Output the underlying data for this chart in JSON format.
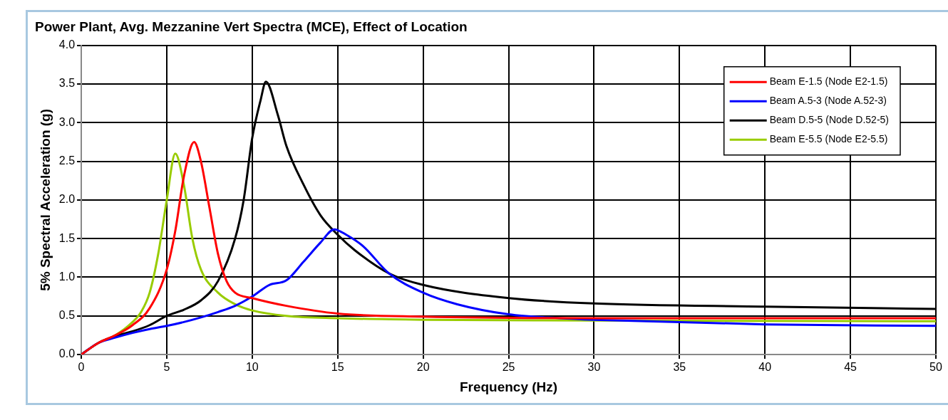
{
  "chart_data": {
    "type": "line",
    "title": "Power Plant, Avg. Mezzanine Vert Spectra (MCE), Effect of Location",
    "xlabel": "Frequency (Hz)",
    "ylabel": "5% Spectral Acceleration (g)",
    "xlim": [
      0,
      50
    ],
    "ylim": [
      0,
      4
    ],
    "xticks": [
      0,
      5,
      10,
      15,
      20,
      25,
      30,
      35,
      40,
      45,
      50
    ],
    "yticks": [
      {
        "value": 0,
        "label": "0.0"
      },
      {
        "value": 0.5,
        "label": "0.5"
      },
      {
        "value": 1,
        "label": "1.0"
      },
      {
        "value": 1.5,
        "label": "1.5"
      },
      {
        "value": 2,
        "label": "2.0"
      },
      {
        "value": 2.5,
        "label": "2.5"
      },
      {
        "value": 3,
        "label": "3.0"
      },
      {
        "value": 3.5,
        "label": "3.5"
      },
      {
        "value": 4,
        "label": "4.0"
      }
    ],
    "grid": true,
    "legend": "top right",
    "marker": "none",
    "line_style": "solid",
    "series": [
      {
        "name": "Beam E-1.5 (Node E2-1.5)",
        "color": "#ff0000",
        "x": [
          0,
          1,
          2,
          3,
          4,
          5,
          5.5,
          6,
          6.6,
          7,
          7.5,
          8,
          8.5,
          9,
          10,
          12,
          15,
          20,
          30,
          40,
          50
        ],
        "values": [
          0,
          0.15,
          0.25,
          0.38,
          0.6,
          1.1,
          1.6,
          2.3,
          2.75,
          2.5,
          1.9,
          1.3,
          0.95,
          0.8,
          0.73,
          0.63,
          0.53,
          0.49,
          0.47,
          0.47,
          0.47
        ]
      },
      {
        "name": "Beam A.5-3 (Node A.52-3)",
        "color": "#0000ff",
        "x": [
          0,
          1,
          2,
          3,
          4,
          5,
          6,
          7,
          8,
          9,
          10,
          11,
          12,
          13,
          14,
          14.8,
          15.5,
          16.5,
          18,
          20,
          22,
          25,
          28,
          30,
          40,
          50
        ],
        "values": [
          0,
          0.15,
          0.22,
          0.28,
          0.33,
          0.37,
          0.42,
          0.48,
          0.55,
          0.63,
          0.75,
          0.9,
          0.96,
          1.2,
          1.45,
          1.62,
          1.55,
          1.4,
          1.05,
          0.8,
          0.65,
          0.52,
          0.47,
          0.45,
          0.39,
          0.37
        ]
      },
      {
        "name": "Beam D.5-5 (Node D.52-5)",
        "color": "#000000",
        "x": [
          0,
          1,
          2,
          3,
          4,
          5,
          6,
          7,
          8,
          9,
          9.5,
          10,
          10.5,
          10.8,
          11.5,
          12,
          13,
          14,
          15,
          16,
          18,
          20,
          25,
          30,
          40,
          50
        ],
        "values": [
          0,
          0.15,
          0.24,
          0.3,
          0.38,
          0.5,
          0.58,
          0.7,
          0.95,
          1.5,
          2,
          2.8,
          3.3,
          3.53,
          3.1,
          2.7,
          2.2,
          1.8,
          1.55,
          1.35,
          1.05,
          0.9,
          0.73,
          0.66,
          0.62,
          0.59
        ]
      },
      {
        "name": "Beam E-5.5 (Node E2-5.5)",
        "color": "#99cc00",
        "x": [
          0,
          1,
          2,
          3,
          3.5,
          4,
          4.5,
          5,
          5.5,
          6,
          6.5,
          7,
          8,
          9,
          10,
          12,
          15,
          20,
          30,
          50
        ],
        "values": [
          0,
          0.15,
          0.25,
          0.42,
          0.55,
          0.8,
          1.3,
          2,
          2.6,
          2.2,
          1.5,
          1.1,
          0.8,
          0.65,
          0.57,
          0.5,
          0.47,
          0.45,
          0.44,
          0.43
        ]
      }
    ]
  }
}
